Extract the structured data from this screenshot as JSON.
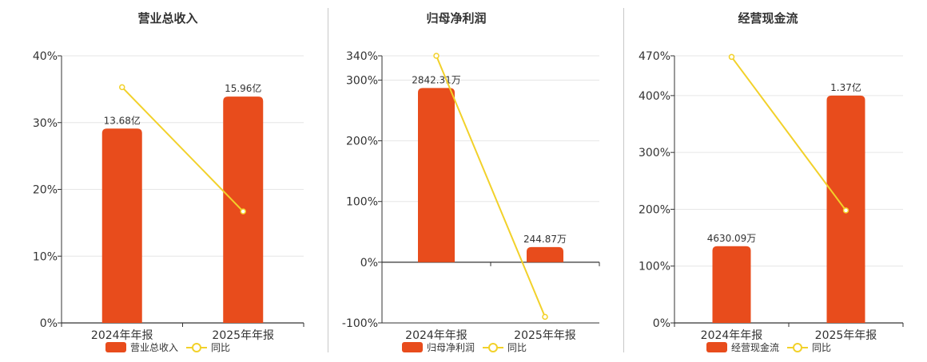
{
  "colors": {
    "bar": "#E84C1C",
    "line": "#F2D12A",
    "grid": "#e6e6e6",
    "axis": "#333333"
  },
  "legend": {
    "yoy_label": "同比"
  },
  "chart_data": [
    {
      "type": "bar",
      "title": "营业总收入",
      "categories": [
        "2024年年报",
        "2025年年报"
      ],
      "series": [
        {
          "name": "营业总收入",
          "type": "bar",
          "values": [
            29.1,
            33.9
          ],
          "data_labels": [
            "13.68亿",
            "15.96亿"
          ]
        },
        {
          "name": "同比",
          "type": "line",
          "values": [
            35.3,
            16.7
          ]
        }
      ],
      "ylim": [
        0,
        40
      ],
      "yticks": [
        0,
        10,
        20,
        30,
        40
      ],
      "ytick_labels": [
        "0%",
        "10%",
        "20%",
        "30%",
        "40%"
      ],
      "grid": true,
      "legend_position": "bottom"
    },
    {
      "type": "bar",
      "title": "归母净利润",
      "categories": [
        "2024年年报",
        "2025年年报"
      ],
      "series": [
        {
          "name": "归母净利润",
          "type": "bar",
          "values": [
            287,
            25
          ],
          "data_labels": [
            "2842.31万",
            "244.87万"
          ]
        },
        {
          "name": "同比",
          "type": "line",
          "values": [
            340,
            -90
          ]
        }
      ],
      "ylim": [
        -100,
        340
      ],
      "yticks": [
        -100,
        0,
        100,
        200,
        300,
        340
      ],
      "ytick_labels": [
        "-100%",
        "0%",
        "100%",
        "200%",
        "300%",
        "340%"
      ],
      "grid": true,
      "legend_position": "bottom"
    },
    {
      "type": "bar",
      "title": "经营现金流",
      "categories": [
        "2024年年报",
        "2025年年报"
      ],
      "series": [
        {
          "name": "经营现金流",
          "type": "bar",
          "values": [
            135,
            400
          ],
          "data_labels": [
            "4630.09万",
            "1.37亿"
          ]
        },
        {
          "name": "同比",
          "type": "line",
          "values": [
            468,
            198
          ]
        }
      ],
      "ylim": [
        0,
        470
      ],
      "yticks": [
        0,
        100,
        200,
        300,
        400,
        470
      ],
      "ytick_labels": [
        "0%",
        "100%",
        "200%",
        "300%",
        "400%",
        "470%"
      ],
      "grid": true,
      "legend_position": "bottom"
    }
  ]
}
